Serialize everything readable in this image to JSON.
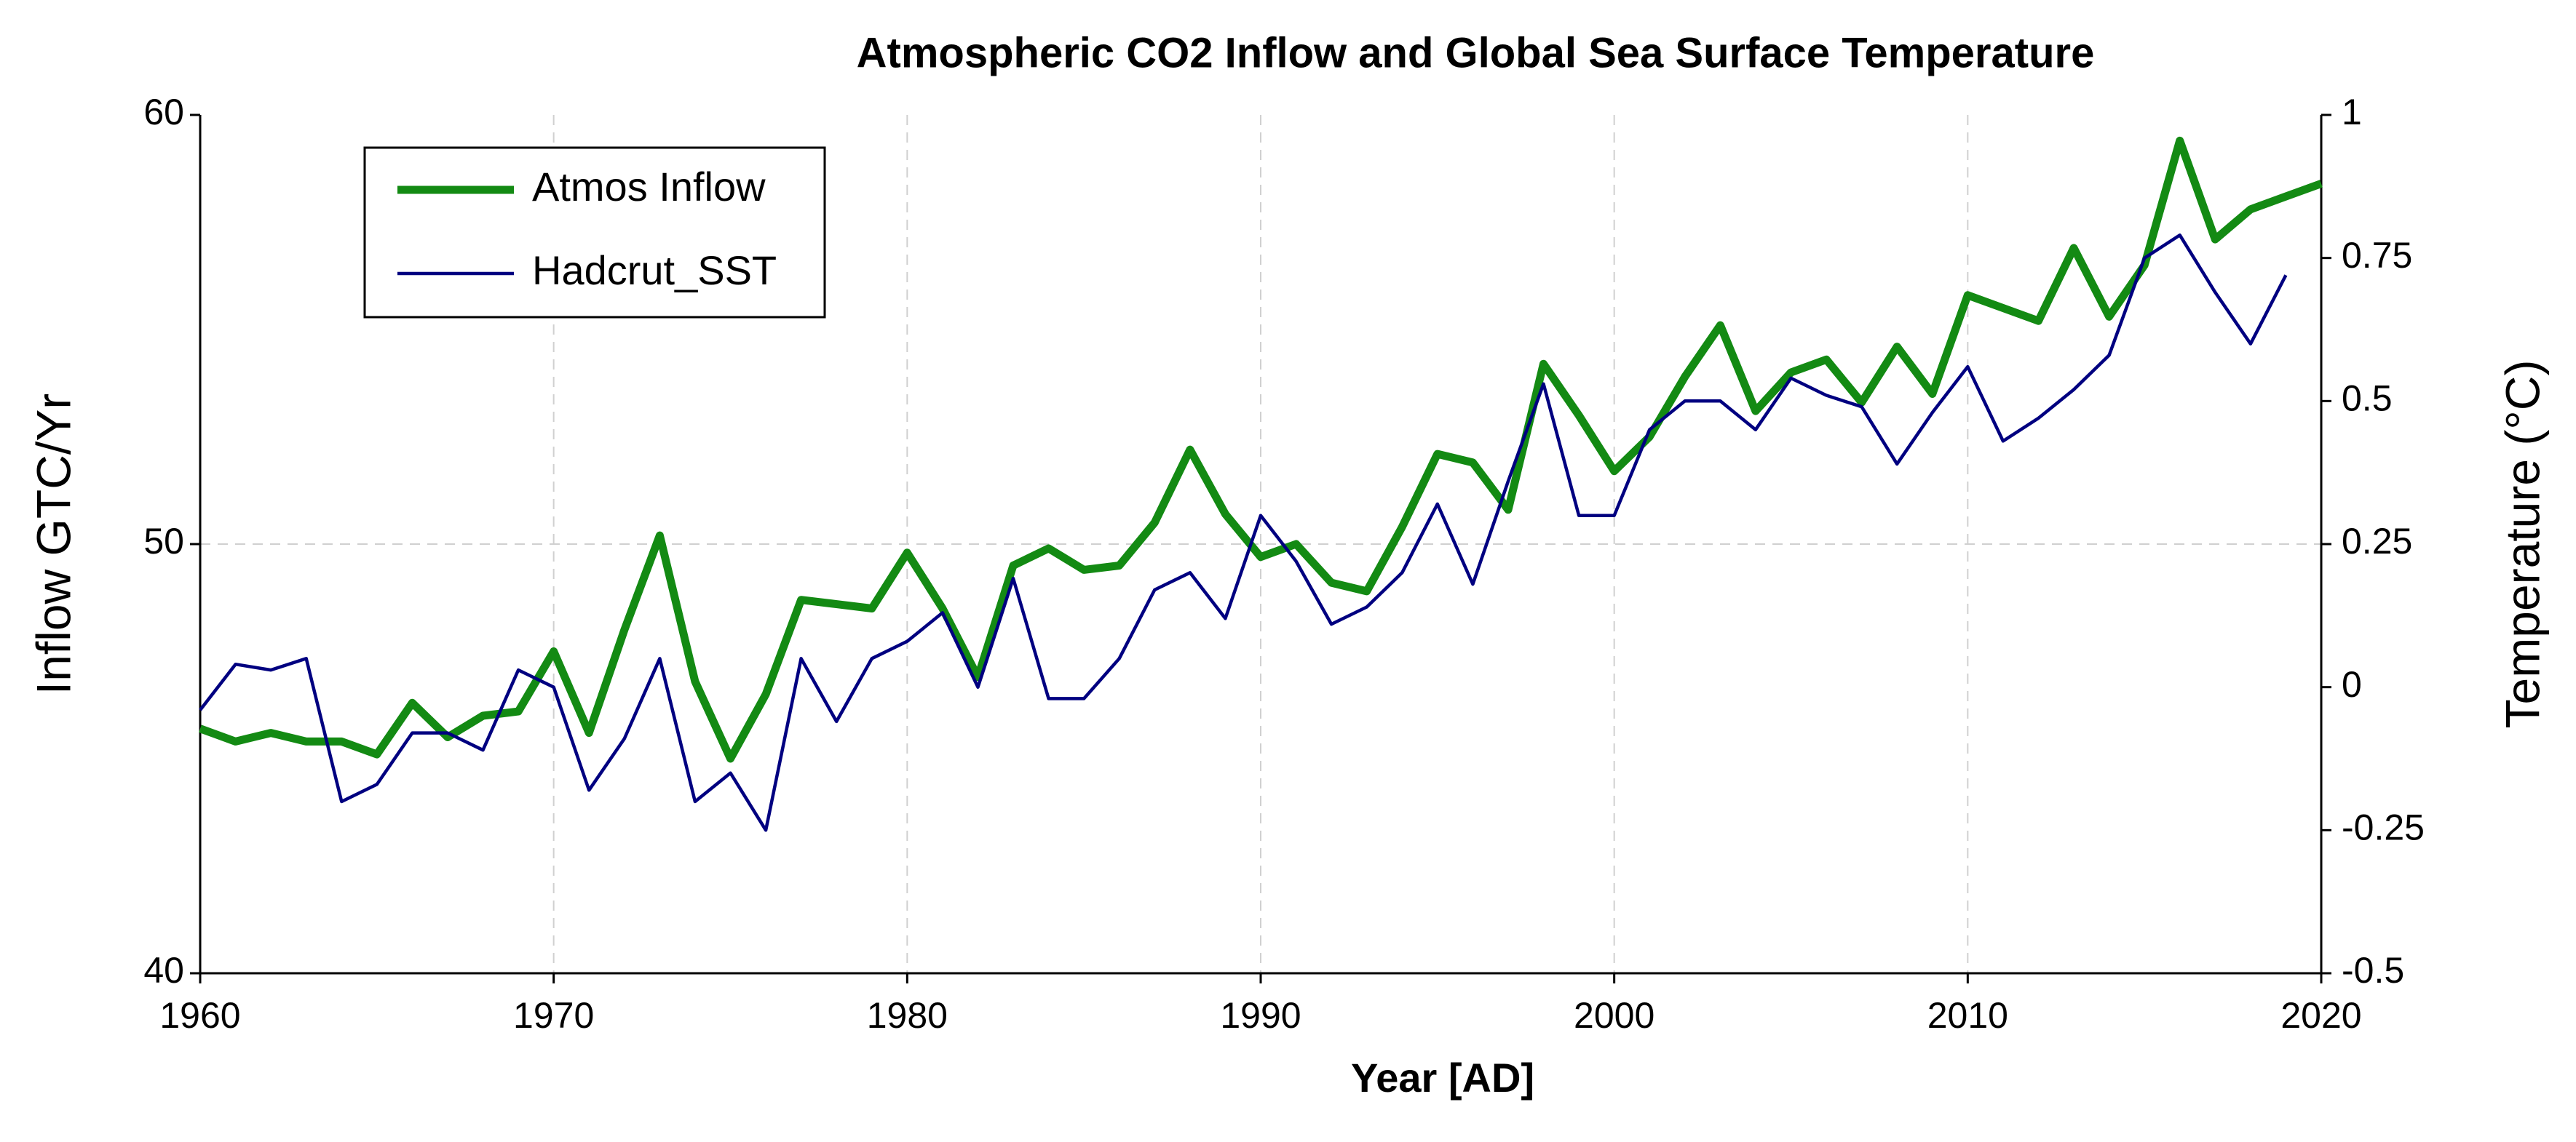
{
  "chart_data": {
    "type": "line",
    "title": "Atmospheric CO2 Inflow and Global Sea Surface Temperature",
    "xlabel": "Year [AD]",
    "ylabel": "Inflow GTC/Yr",
    "y2label": "Temperature (°C)",
    "x": [
      1960,
      1961,
      1962,
      1963,
      1964,
      1965,
      1966,
      1967,
      1968,
      1969,
      1970,
      1971,
      1972,
      1973,
      1974,
      1975,
      1976,
      1977,
      1978,
      1979,
      1980,
      1981,
      1982,
      1983,
      1984,
      1985,
      1986,
      1987,
      1988,
      1989,
      1990,
      1991,
      1992,
      1993,
      1994,
      1995,
      1996,
      1997,
      1998,
      1999,
      2000,
      2001,
      2002,
      2003,
      2004,
      2005,
      2006,
      2007,
      2008,
      2009,
      2010,
      2011,
      2012,
      2013,
      2014,
      2015,
      2016,
      2017,
      2018,
      2019,
      2020
    ],
    "series": [
      {
        "name": "Atmos Inflow",
        "color": "#138a13",
        "values": [
          45.7,
          45.4,
          45.6,
          45.4,
          45.4,
          45.1,
          46.3,
          45.5,
          46.0,
          46.1,
          47.5,
          45.6,
          48.0,
          50.2,
          46.8,
          45.0,
          46.5,
          48.7,
          48.6,
          48.5,
          49.8,
          48.5,
          46.9,
          49.5,
          49.9,
          49.4,
          49.5,
          50.5,
          52.2,
          50.7,
          49.7,
          50.0,
          49.1,
          48.9,
          50.4,
          52.1,
          51.9,
          50.8,
          54.2,
          53.0,
          51.7,
          52.5,
          53.9,
          55.1,
          53.1,
          54.0,
          54.3,
          53.3,
          54.6,
          53.5,
          55.8,
          55.5,
          55.2,
          56.9,
          55.3,
          56.5,
          59.4,
          57.1,
          57.8,
          58.1,
          58.4
        ]
      },
      {
        "name": "Hadcrut_SST",
        "color": "#000080",
        "axis": "y2",
        "values": [
          -0.04,
          0.04,
          0.03,
          0.05,
          -0.2,
          -0.17,
          -0.08,
          -0.08,
          -0.11,
          0.03,
          0.0,
          -0.18,
          -0.09,
          0.05,
          -0.2,
          -0.15,
          -0.25,
          0.05,
          -0.06,
          0.05,
          0.08,
          0.13,
          0.0,
          0.19,
          -0.02,
          -0.02,
          0.05,
          0.17,
          0.2,
          0.12,
          0.3,
          0.22,
          0.11,
          0.14,
          0.2,
          0.32,
          0.18,
          0.36,
          0.53,
          0.3,
          0.3,
          0.45,
          0.5,
          0.5,
          0.45,
          0.54,
          0.51,
          0.49,
          0.39,
          0.48,
          0.56,
          0.43,
          0.47,
          0.52,
          0.58,
          0.75,
          0.79,
          0.69,
          0.6,
          0.72,
          null
        ]
      }
    ],
    "xlim": [
      1960,
      2020
    ],
    "xticks": [
      1960,
      1970,
      1980,
      1990,
      2000,
      2010,
      2020
    ],
    "ylim": [
      40,
      60
    ],
    "yticks": [
      40,
      50,
      60
    ],
    "y2lim": [
      -0.5,
      1
    ],
    "y2ticks": [
      1,
      0.75,
      0.5,
      0.25,
      0,
      -0.25,
      -0.5
    ],
    "grid": true,
    "legend": "upper left"
  }
}
